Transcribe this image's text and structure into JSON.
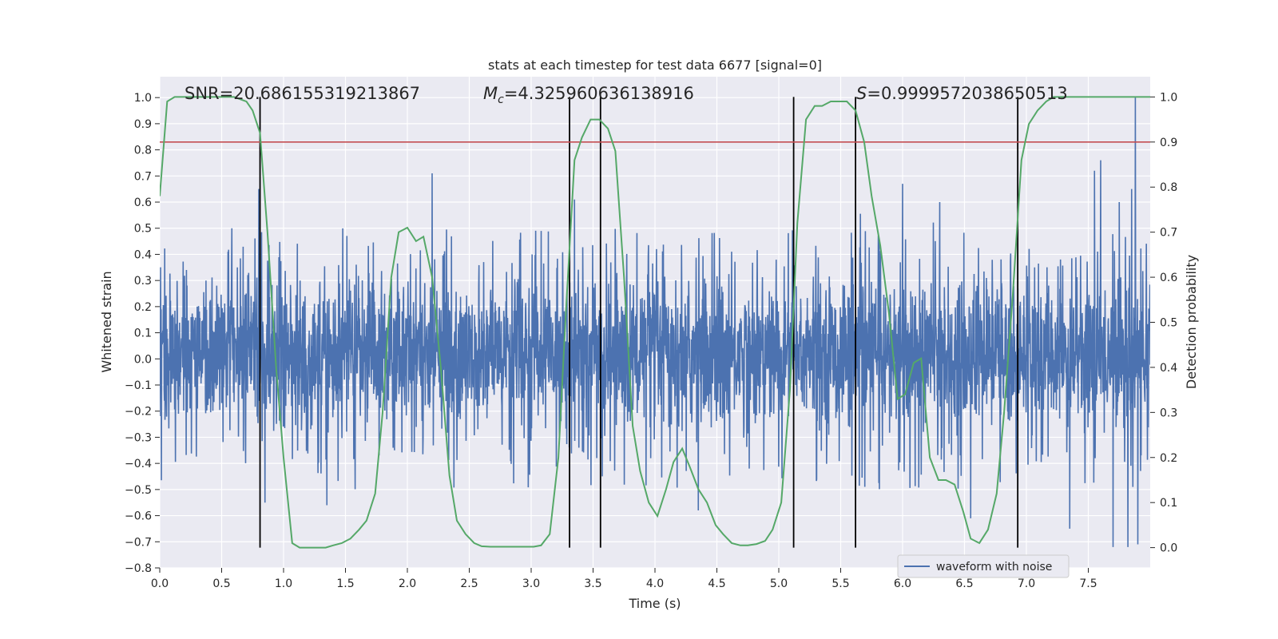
{
  "chart_data": {
    "type": "line",
    "title": "stats at each timestep for test data 6677 [signal=0]",
    "xlabel": "Time (s)",
    "ylabel": "Whitened strain",
    "y2label": "Detection probability",
    "xlim": [
      0.0,
      8.0
    ],
    "ylim": [
      -0.8,
      1.08
    ],
    "y2lim": [
      -0.045,
      1.045
    ],
    "x_ticks": [
      "0.0",
      "0.5",
      "1.0",
      "1.5",
      "2.0",
      "2.5",
      "3.0",
      "3.5",
      "4.0",
      "4.5",
      "5.0",
      "5.5",
      "6.0",
      "6.5",
      "7.0",
      "7.5"
    ],
    "y_ticks": [
      "−0.8",
      "−0.7",
      "−0.6",
      "−0.5",
      "−0.4",
      "−0.3",
      "−0.2",
      "−0.1",
      "0.0",
      "0.1",
      "0.2",
      "0.3",
      "0.4",
      "0.5",
      "0.6",
      "0.7",
      "0.8",
      "0.9",
      "1.0"
    ],
    "y2_ticks": [
      "0.0",
      "0.1",
      "0.2",
      "0.3",
      "0.4",
      "0.5",
      "0.6",
      "0.7",
      "0.8",
      "0.9",
      "1.0"
    ],
    "grid": true,
    "legend_position": "lower-right",
    "annotations": {
      "snr": "SNR=20.686155319213867",
      "mc_symbol": "M",
      "mc_sub": "c",
      "mc_value": "=4.325960636138916",
      "s_symbol": "S",
      "s_value": "=0.9999572038650513"
    },
    "threshold": 0.9,
    "vertical_lines": [
      0.81,
      3.31,
      3.56,
      5.12,
      5.62,
      6.93
    ],
    "series": [
      {
        "name": "waveform with noise",
        "axis": "left",
        "kind": "noise-waveform",
        "envelope_typical": [
          -0.3,
          0.35
        ],
        "peaks": [
          {
            "x": 0.8,
            "y": 0.65
          },
          {
            "x": 2.2,
            "y": 0.71
          },
          {
            "x": 7.55,
            "y": 0.72
          },
          {
            "x": 7.6,
            "y": 0.76
          },
          {
            "x": 7.88,
            "y": 1.0
          },
          {
            "x": 7.85,
            "y": 0.65
          },
          {
            "x": 7.75,
            "y": 0.6
          },
          {
            "x": 6.3,
            "y": 0.6
          },
          {
            "x": 3.35,
            "y": 0.61
          },
          {
            "x": 6.0,
            "y": 0.67
          },
          {
            "x": 7.82,
            "y": -0.72
          },
          {
            "x": 7.7,
            "y": -0.72
          },
          {
            "x": 7.9,
            "y": -0.71
          },
          {
            "x": 7.35,
            "y": -0.65
          },
          {
            "x": 6.55,
            "y": -0.61
          },
          {
            "x": 4.35,
            "y": -0.58
          },
          {
            "x": 1.35,
            "y": -0.56
          },
          {
            "x": 0.85,
            "y": -0.55
          }
        ]
      },
      {
        "name": "",
        "axis": "right",
        "kind": "detection-probability",
        "x": [
          0.0,
          0.06,
          0.12,
          0.2,
          0.3,
          0.4,
          0.5,
          0.6,
          0.7,
          0.75,
          0.81,
          0.87,
          0.94,
          1.0,
          1.07,
          1.13,
          1.2,
          1.27,
          1.34,
          1.4,
          1.47,
          1.54,
          1.61,
          1.67,
          1.74,
          1.8,
          1.87,
          1.93,
          2.0,
          2.07,
          2.13,
          2.2,
          2.27,
          2.34,
          2.4,
          2.47,
          2.54,
          2.6,
          2.67,
          2.74,
          2.81,
          2.88,
          2.95,
          3.02,
          3.08,
          3.15,
          3.22,
          3.28,
          3.35,
          3.41,
          3.48,
          3.55,
          3.62,
          3.68,
          3.75,
          3.82,
          3.88,
          3.95,
          4.02,
          4.09,
          4.15,
          4.22,
          4.28,
          4.35,
          4.42,
          4.49,
          4.55,
          4.62,
          4.69,
          4.75,
          4.82,
          4.89,
          4.95,
          5.02,
          5.09,
          5.15,
          5.22,
          5.29,
          5.35,
          5.42,
          5.49,
          5.55,
          5.62,
          5.69,
          5.75,
          5.82,
          5.89,
          5.96,
          6.02,
          6.09,
          6.15,
          6.22,
          6.29,
          6.35,
          6.42,
          6.49,
          6.55,
          6.62,
          6.69,
          6.76,
          6.82,
          6.89,
          6.96,
          7.02,
          7.09,
          7.16,
          7.22,
          7.3,
          7.4,
          7.5,
          7.6,
          7.7,
          7.8,
          7.9,
          8.0
        ],
        "y": [
          0.78,
          0.99,
          1.0,
          1.0,
          1.0,
          1.0,
          1.0,
          1.0,
          0.99,
          0.97,
          0.92,
          0.7,
          0.4,
          0.2,
          0.01,
          0.0,
          0.0,
          0.0,
          0.0,
          0.005,
          0.01,
          0.02,
          0.04,
          0.06,
          0.12,
          0.3,
          0.6,
          0.7,
          0.71,
          0.68,
          0.69,
          0.6,
          0.4,
          0.16,
          0.06,
          0.03,
          0.01,
          0.003,
          0.002,
          0.002,
          0.002,
          0.002,
          0.002,
          0.002,
          0.005,
          0.03,
          0.2,
          0.52,
          0.86,
          0.91,
          0.95,
          0.95,
          0.93,
          0.88,
          0.6,
          0.27,
          0.17,
          0.1,
          0.07,
          0.13,
          0.19,
          0.22,
          0.18,
          0.13,
          0.1,
          0.05,
          0.03,
          0.01,
          0.005,
          0.005,
          0.008,
          0.015,
          0.04,
          0.1,
          0.35,
          0.72,
          0.95,
          0.98,
          0.98,
          0.99,
          0.99,
          0.99,
          0.97,
          0.9,
          0.78,
          0.67,
          0.52,
          0.33,
          0.34,
          0.41,
          0.42,
          0.2,
          0.15,
          0.15,
          0.14,
          0.08,
          0.02,
          0.01,
          0.04,
          0.12,
          0.3,
          0.56,
          0.86,
          0.94,
          0.97,
          0.99,
          1.0,
          1.0,
          1.0,
          1.0,
          1.0,
          1.0,
          1.0,
          1.0,
          1.0
        ]
      }
    ]
  },
  "colors": {
    "background": "#eaeaf2",
    "grid": "#ffffff",
    "waveform": "#4c72b0",
    "probability": "#55a868",
    "threshold": "#c44e52",
    "vline": "#000000",
    "text": "#262626"
  }
}
